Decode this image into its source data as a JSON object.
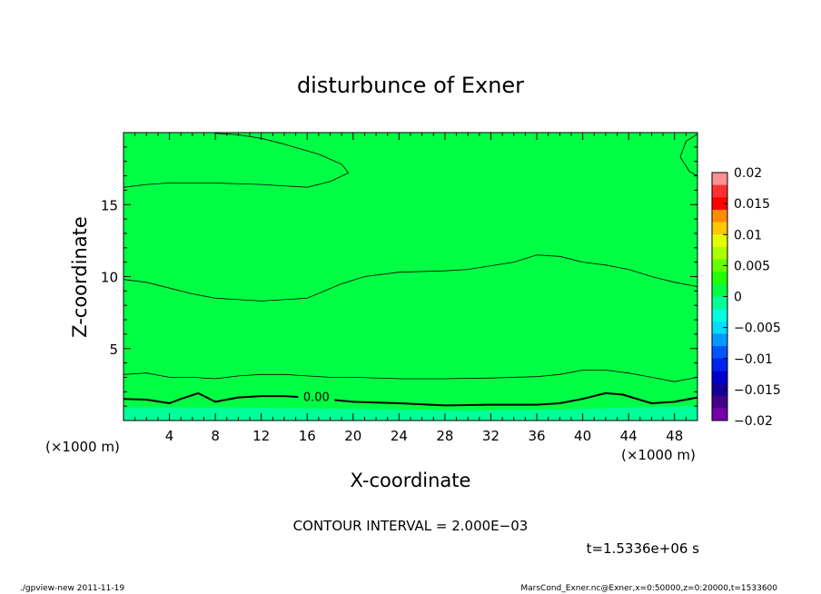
{
  "chart_data": {
    "type": "heatmap",
    "title": "disturbunce of Exner",
    "xlabel": "X-coordinate",
    "ylabel": "Z-coordinate",
    "x_unit_label": "(×1000 m)",
    "x_unit_label_right": "(×1000 m)",
    "xlim": [
      0,
      50
    ],
    "ylim": [
      0,
      20
    ],
    "x_ticks": [
      4,
      8,
      12,
      16,
      20,
      24,
      28,
      32,
      36,
      40,
      44,
      48
    ],
    "y_ticks": [
      5,
      10,
      15
    ],
    "colorbar": {
      "min": -0.02,
      "max": 0.02,
      "ticks": [
        0.02,
        0.015,
        0.01,
        0.005,
        0,
        -0.005,
        -0.01,
        -0.015,
        -0.02
      ],
      "tick_labels": [
        "0.02",
        "0.015",
        "0.01",
        "0.005",
        "0",
        "−0.005",
        "−0.01",
        "−0.015",
        "−0.02"
      ],
      "colors": [
        "#ff9090",
        "#ff3030",
        "#ff0000",
        "#ff8c00",
        "#ffc800",
        "#e6ff00",
        "#aaff00",
        "#66ff00",
        "#22ff00",
        "#00ff44",
        "#00ff99",
        "#00ffdd",
        "#00ddff",
        "#0099ff",
        "#0055ff",
        "#0022ee",
        "#0000cc",
        "#110099",
        "#440088",
        "#7700aa"
      ]
    },
    "contour_labels": [
      {
        "text": "0.00",
        "x": 16.8,
        "y": 1.6
      }
    ],
    "contour_lines": [
      {
        "level": 0.0,
        "bold": true,
        "points": [
          [
            0,
            1.5
          ],
          [
            2,
            1.45
          ],
          [
            4,
            1.2
          ],
          [
            5,
            1.5
          ],
          [
            6.5,
            1.9
          ],
          [
            8,
            1.3
          ],
          [
            10,
            1.6
          ],
          [
            12,
            1.7
          ],
          [
            14,
            1.7
          ],
          [
            16,
            1.6
          ],
          [
            20,
            1.3
          ],
          [
            24,
            1.2
          ],
          [
            28,
            1.05
          ],
          [
            32,
            1.1
          ],
          [
            36,
            1.1
          ],
          [
            38,
            1.2
          ],
          [
            40,
            1.5
          ],
          [
            42,
            1.9
          ],
          [
            43.5,
            1.8
          ],
          [
            46,
            1.2
          ],
          [
            48,
            1.3
          ],
          [
            50,
            1.6
          ]
        ]
      },
      {
        "level": 0.002,
        "bold": false,
        "points": [
          [
            0,
            3.2
          ],
          [
            2,
            3.3
          ],
          [
            4,
            3.0
          ],
          [
            6,
            3.0
          ],
          [
            8,
            2.9
          ],
          [
            10,
            3.1
          ],
          [
            12,
            3.2
          ],
          [
            14,
            3.2
          ],
          [
            16,
            3.1
          ],
          [
            18,
            3.0
          ],
          [
            20,
            3.0
          ],
          [
            24,
            2.9
          ],
          [
            28,
            2.9
          ],
          [
            32,
            2.95
          ],
          [
            36,
            3.05
          ],
          [
            38,
            3.2
          ],
          [
            40,
            3.5
          ],
          [
            42,
            3.5
          ],
          [
            44,
            3.3
          ],
          [
            46,
            3.0
          ],
          [
            48,
            2.7
          ],
          [
            50,
            3.0
          ]
        ]
      },
      {
        "level": 0.002,
        "bold": false,
        "points": [
          [
            0,
            9.8
          ],
          [
            2,
            9.6
          ],
          [
            4,
            9.2
          ],
          [
            6,
            8.8
          ],
          [
            8,
            8.5
          ],
          [
            10,
            8.4
          ],
          [
            12,
            8.3
          ],
          [
            14,
            8.4
          ],
          [
            16,
            8.5
          ],
          [
            17.5,
            9.0
          ],
          [
            19,
            9.5
          ],
          [
            21,
            10.0
          ],
          [
            24,
            10.3
          ],
          [
            28,
            10.4
          ],
          [
            30,
            10.5
          ],
          [
            34,
            11.0
          ],
          [
            36,
            11.5
          ],
          [
            38,
            11.4
          ],
          [
            40,
            11.0
          ],
          [
            42,
            10.8
          ],
          [
            44,
            10.5
          ],
          [
            46,
            10.0
          ],
          [
            48,
            9.6
          ],
          [
            50,
            9.3
          ]
        ]
      },
      {
        "level": 0.002,
        "bold": false,
        "points": [
          [
            0,
            16.2
          ],
          [
            2,
            16.4
          ],
          [
            4,
            16.5
          ],
          [
            8,
            16.5
          ],
          [
            12,
            16.4
          ],
          [
            16,
            16.2
          ],
          [
            18,
            16.6
          ],
          [
            19.6,
            17.2
          ],
          [
            19,
            17.8
          ],
          [
            17,
            18.5
          ],
          [
            14,
            19.2
          ],
          [
            12,
            19.6
          ],
          [
            10,
            19.85
          ],
          [
            8,
            19.95
          ]
        ]
      },
      {
        "level": 0.002,
        "bold": false,
        "points": [
          [
            50,
            19.9
          ],
          [
            49,
            19.4
          ],
          [
            48.5,
            18.3
          ],
          [
            49.3,
            17.3
          ],
          [
            50,
            17.0
          ]
        ]
      }
    ],
    "fill_regions": [
      {
        "value": -0.001,
        "points": [
          [
            0,
            0
          ],
          [
            50,
            0
          ],
          [
            50,
            1.0
          ],
          [
            44,
            0.9
          ],
          [
            40,
            0.8
          ],
          [
            30,
            0.7
          ],
          [
            20,
            0.8
          ],
          [
            10,
            0.9
          ],
          [
            0,
            0.9
          ]
        ]
      },
      {
        "value": 0.001,
        "points": [
          [
            0,
            5
          ],
          [
            3,
            5.4
          ],
          [
            6,
            5.2
          ],
          [
            8,
            4.6
          ],
          [
            10,
            4.2
          ],
          [
            12,
            4.3
          ],
          [
            13,
            5
          ],
          [
            12,
            5.7
          ],
          [
            10,
            6.5
          ],
          [
            6,
            7.7
          ],
          [
            4,
            7.6
          ],
          [
            2,
            7.0
          ],
          [
            0,
            6.5
          ]
        ]
      },
      {
        "value": 0.001,
        "points": [
          [
            17,
            4.8
          ],
          [
            20,
            5.4
          ],
          [
            24,
            5.8
          ],
          [
            28,
            5.9
          ],
          [
            32,
            6.0
          ],
          [
            36,
            6.4
          ],
          [
            40,
            6.3
          ],
          [
            42,
            5.8
          ],
          [
            40,
            4.8
          ],
          [
            36,
            4.3
          ],
          [
            32,
            4.4
          ],
          [
            28,
            4.5
          ],
          [
            24,
            4.4
          ],
          [
            20,
            4.3
          ],
          [
            17,
            4.2
          ]
        ]
      }
    ],
    "background_value": 0.0005
  },
  "contour_interval_text": "CONTOUR INTERVAL = 2.000E−03",
  "time_text": "t=1.5336e+06 s",
  "footer_left": "./gpview-new  2011-11-19",
  "footer_right": "MarsCond_Exner.nc@Exner,x=0:50000,z=0:20000,t=1533600"
}
